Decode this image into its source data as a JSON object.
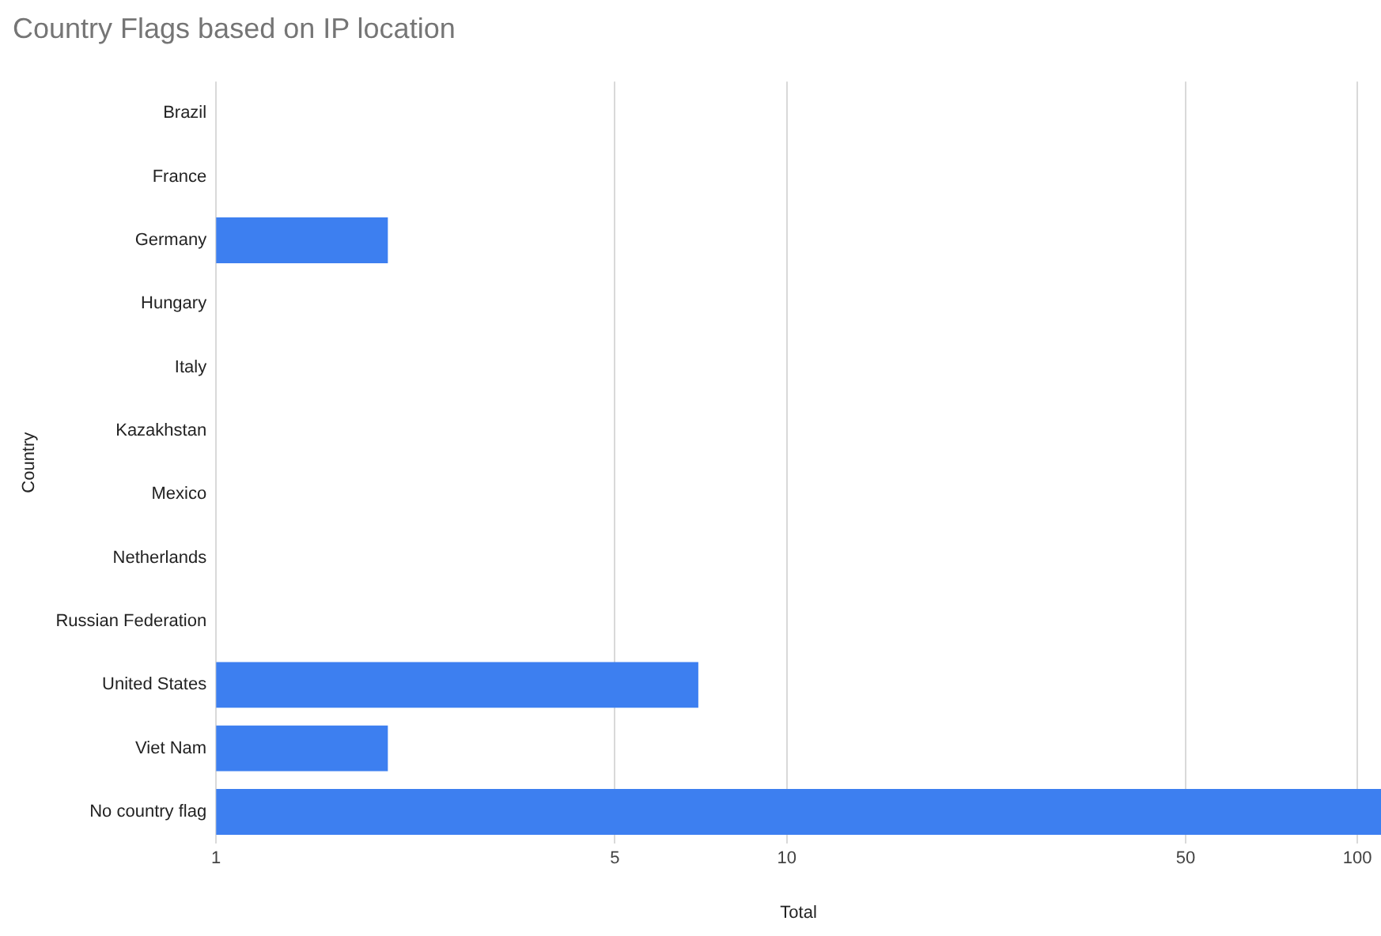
{
  "chart_data": {
    "type": "bar",
    "orientation": "horizontal",
    "title": "Country Flags based on IP location",
    "xlabel": "Total",
    "ylabel": "Country",
    "categories": [
      "Brazil",
      "France",
      "Germany",
      "Hungary",
      "Italy",
      "Kazakhstan",
      "Mexico",
      "Netherlands",
      "Russian Federation",
      "United States",
      "Viet Nam",
      "No country flag"
    ],
    "values": [
      1,
      1,
      2,
      1,
      1,
      1,
      1,
      1,
      1,
      7,
      2,
      110
    ],
    "color": "#3d7ff0",
    "log": "x",
    "xlim": [
      1,
      110
    ],
    "xticks": [
      1,
      5,
      10,
      50,
      100
    ],
    "grid": "x",
    "legend": false
  }
}
